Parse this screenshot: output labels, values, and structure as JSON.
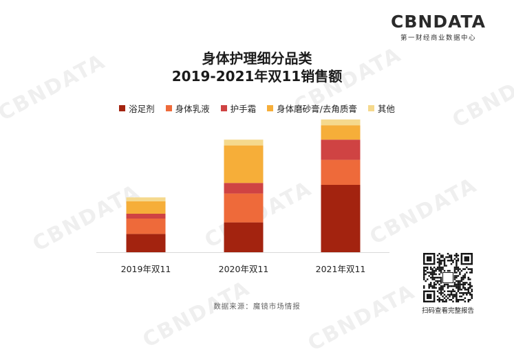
{
  "brand": {
    "logo_text": "CBNDATA",
    "logo_sub": "第一财经商业数据中心",
    "watermark": "CBNDATA",
    "watermark_sub": "第一财经商业数据中心"
  },
  "source_text": "数据来源：魔镜市场情报",
  "qr_caption": "扫码查看完整报告",
  "colors": {
    "foot_care": "#a3230f",
    "body_lotion": "#ee6a3a",
    "hand_cream": "#cf4343",
    "body_scrub": "#f6ae39",
    "other": "#f5d98d"
  },
  "chart_data": {
    "type": "bar",
    "stacked": true,
    "title": "身体护理细分品类",
    "subtitle": "2019-2021年双11销售额",
    "xlabel": "",
    "ylabel": "",
    "legend_position": "top-center",
    "grid": false,
    "categories": [
      "2019年双11",
      "2020年双11",
      "2021年双11"
    ],
    "series": [
      {
        "name": "浴足剂",
        "color": "#a3230f",
        "values": [
          19,
          31,
          70
        ]
      },
      {
        "name": "身体乳液",
        "color": "#ee6a3a",
        "values": [
          16,
          30,
          26
        ]
      },
      {
        "name": "护手霜",
        "color": "#cf4343",
        "values": [
          5,
          11,
          21
        ]
      },
      {
        "name": "身体磨砂膏/去角质膏",
        "color": "#f6ae39",
        "values": [
          13,
          39,
          15
        ]
      },
      {
        "name": "其他",
        "color": "#f5d98d",
        "values": [
          4,
          6,
          6
        ]
      }
    ],
    "ylim": [
      0,
      140
    ]
  }
}
